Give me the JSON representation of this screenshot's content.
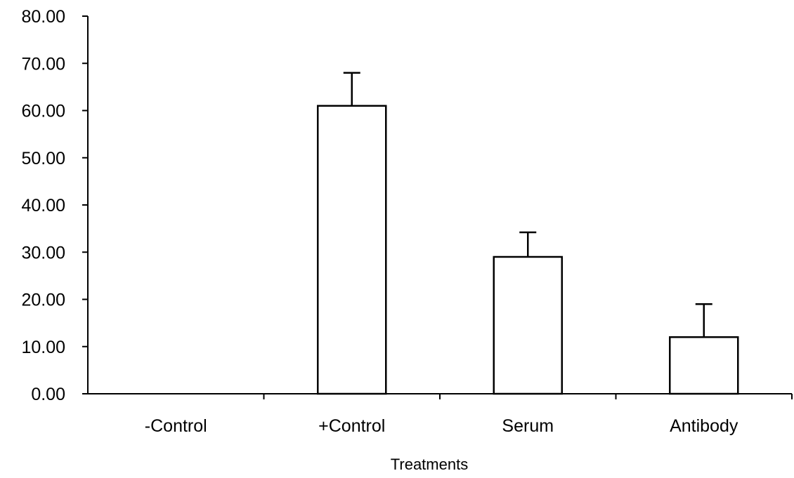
{
  "chart_data": {
    "type": "bar",
    "categories": [
      "-Control",
      "+Control",
      "Serum",
      "Antibody"
    ],
    "values": [
      0.0,
      61.0,
      29.0,
      12.0
    ],
    "error_upper": [
      0.0,
      7.0,
      5.2,
      7.0
    ],
    "xlabel": "Treatments",
    "ylabel": "",
    "ylim": [
      0,
      80
    ],
    "yticks": [
      0,
      10,
      20,
      30,
      40,
      50,
      60,
      70,
      80
    ],
    "ytick_labels": [
      "0.00",
      "10.00",
      "20.00",
      "30.00",
      "40.00",
      "50.00",
      "60.00",
      "70.00",
      "80.00"
    ],
    "grid": false,
    "legend": "none",
    "colors": {
      "bar_fill": "#ffffff",
      "bar_stroke": "#000000",
      "axis": "#000000"
    }
  }
}
